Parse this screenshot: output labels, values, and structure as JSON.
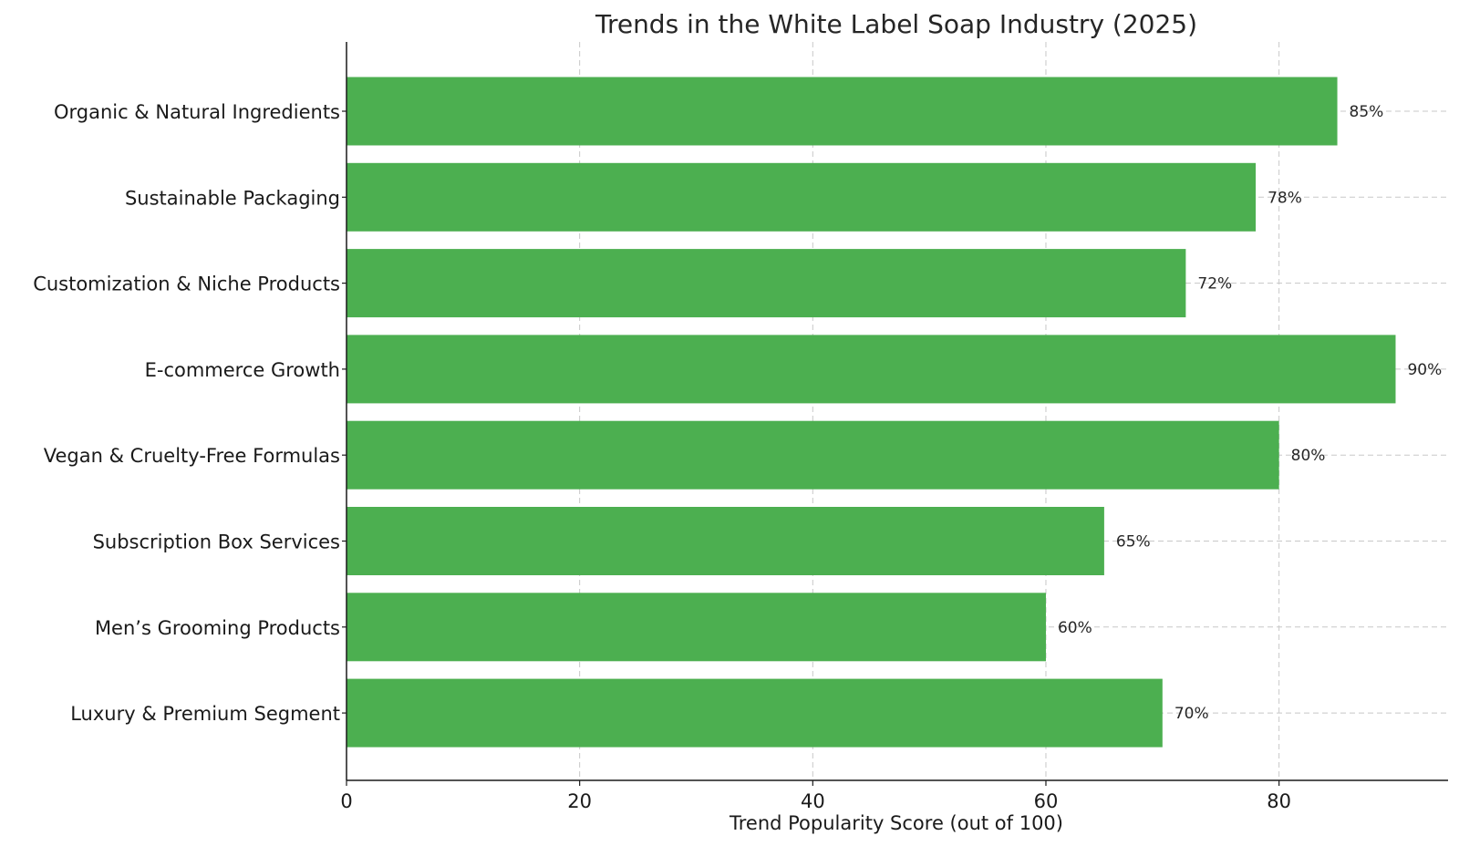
{
  "chart_data": {
    "type": "bar",
    "orientation": "horizontal",
    "title": "Trends in the White Label Soap Industry (2025)",
    "xlabel": "Trend Popularity Score (out of 100)",
    "ylabel": "",
    "categories": [
      "Organic & Natural Ingredients",
      "Sustainable Packaging",
      "Customization & Niche Products",
      "E-commerce Growth",
      "Vegan & Cruelty-Free Formulas",
      "Subscription Box Services",
      "Men’s Grooming Products",
      "Luxury & Premium Segment"
    ],
    "values": [
      85,
      78,
      72,
      90,
      80,
      65,
      60,
      70
    ],
    "data_labels": [
      "85%",
      "78%",
      "72%",
      "90%",
      "80%",
      "65%",
      "60%",
      "70%"
    ],
    "xlim": [
      0,
      94.5
    ],
    "xticks": [
      0,
      20,
      40,
      60,
      80
    ],
    "grid": true,
    "bar_color": "#4caf50"
  }
}
